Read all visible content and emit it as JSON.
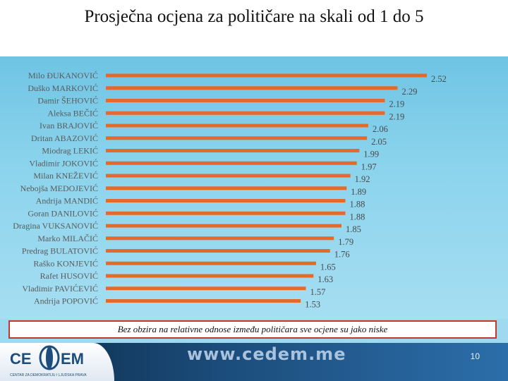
{
  "title": "Prosječna ocjena za političare na skali od 1 do 5",
  "note": "Bez obzira na relativne odnose između političara sve ocjene su jako niske",
  "footer": {
    "logo_left": "CE",
    "logo_right": "EM",
    "logo_subtitle": "CENTAR ZA DEMOKRATIJU I LJUDSKA PRAVA",
    "url": "www.cedem.me",
    "page_number": "10"
  },
  "colors": {
    "bar": "#e36a2c",
    "panel": "#8ad3ec",
    "note_border": "#c0392b",
    "footer": "#1c4d7c"
  },
  "chart_data": {
    "type": "bar",
    "orientation": "horizontal",
    "title": "Prosječna ocjena za političare na skali od 1 do 5",
    "xlabel": "",
    "ylabel": "",
    "xlim": [
      0,
      2.52
    ],
    "grid": false,
    "legend": "none",
    "categories": [
      "Milo ĐUKANOVIĆ",
      "Duško MARKOVIĆ",
      "Damir ŠEHOVIĆ",
      "Aleksa BEČIĆ",
      "Ivan BRAJOVIĆ",
      "Dritan ABAZOVIĆ",
      "Miodrag LEKIĆ",
      "Vladimir JOKOVIĆ",
      "Milan KNEŽEVIĆ",
      "Nebojša MEDOJEVIĆ",
      "Andrija MANDIĆ",
      "Goran DANILOVIĆ",
      "Dragina VUKSANOVIĆ",
      "Marko MILAČIĆ",
      "Predrag BULATOVIĆ",
      "Raško KONJEVIĆ",
      "Rafet HUSOVIĆ",
      "Vladimir PAVIĆEVIĆ",
      "Andrija POPOVIĆ"
    ],
    "values": [
      2.52,
      2.29,
      2.19,
      2.19,
      2.06,
      2.05,
      1.99,
      1.97,
      1.92,
      1.89,
      1.88,
      1.88,
      1.85,
      1.79,
      1.76,
      1.65,
      1.63,
      1.57,
      1.53
    ],
    "value_labels": [
      "2.52",
      "2.29",
      "2.19",
      "2.19",
      "2.06",
      "2.05",
      "1.99",
      "1.97",
      "1.92",
      "1.89",
      "1.88",
      "1.88",
      "1.85",
      "1.79",
      "1.76",
      "1.65",
      "1.63",
      "1.57",
      "1.53"
    ]
  }
}
